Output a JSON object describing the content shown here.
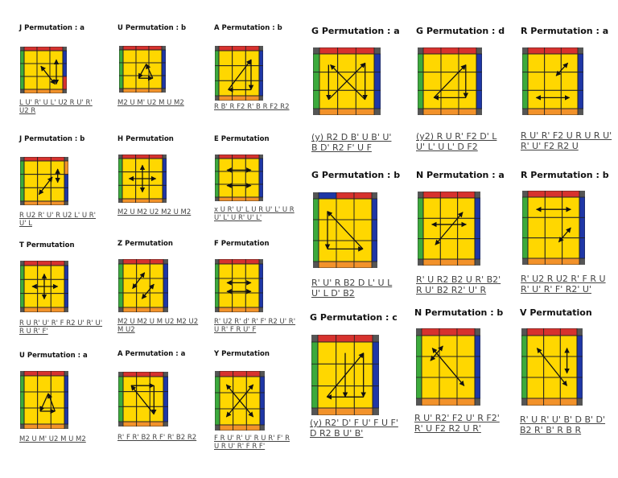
{
  "colors": {
    "face": "#ffd700",
    "grid": "#222222",
    "red": "#d7322e",
    "blue": "#1f37a6",
    "green": "#3caa3c",
    "orange": "#f2922a",
    "arrow": "#111111"
  },
  "cases": [
    {
      "id": "j-a",
      "title": "J Permutation : a",
      "alg": [
        "L U' R' U L' U2 R U' R'",
        "U2 R"
      ]
    },
    {
      "id": "u-b",
      "title": "U Permutation : b",
      "alg": [
        "M2 U M' U2 M U M2"
      ]
    },
    {
      "id": "a-b",
      "title": "A Permutation : b",
      "alg": [
        "R B' R F2 R' B R F2 R2"
      ]
    },
    {
      "id": "j-b",
      "title": "J Permutation : b",
      "alg": [
        "R U2 R' U' R U2 L' U R'",
        "U' L"
      ]
    },
    {
      "id": "h",
      "title": "H Permutation",
      "alg": [
        "M2 U M2 U2 M2 U M2"
      ]
    },
    {
      "id": "e",
      "title": "E Permutation",
      "alg": [
        "x U R' U' L U R U' L' U R",
        "U' L' U R' U' L'"
      ]
    },
    {
      "id": "t",
      "title": "T Permutation",
      "alg": [
        "R U R' U' R' F R2 U' R' U'",
        "R U R' F'"
      ]
    },
    {
      "id": "z",
      "title": "Z Permutation",
      "alg": [
        "M2 U M2 U M U2 M2 U2",
        "M U2"
      ]
    },
    {
      "id": "f",
      "title": "F Permutation",
      "alg": [
        "R' U2 R' d' R' F' R2 U' R'",
        "U R' F R U' F"
      ]
    },
    {
      "id": "u-a",
      "title": "U Permutation : a",
      "alg": [
        "M2 U M' U2 M U M2"
      ]
    },
    {
      "id": "a-a",
      "title": "A Permutation : a",
      "alg": [
        "R' F R' B2 R F' R' B2 R2"
      ]
    },
    {
      "id": "y",
      "title": "Y Permutation",
      "alg": [
        "F R U' R' U' R U R' F' R",
        "U R U' R' F R F'"
      ]
    },
    {
      "id": "g-a",
      "title": "G Permutation : a",
      "alg": [
        "(y) R2 D B' U B' U'",
        "B D' R2 F' U F"
      ]
    },
    {
      "id": "g-d",
      "title": "G Permutation : d",
      "alg": [
        "(y2) R U R' F2 D' L",
        "U' L' U L' D F2"
      ]
    },
    {
      "id": "r-a",
      "title": "R Permutation : a",
      "alg": [
        "R U' R' F2 U R U R U'",
        "R' U' F2 R2 U"
      ]
    },
    {
      "id": "g-b",
      "title": "G Permutation : b",
      "alg": [
        "R' U' R B2 D L' U L",
        "U' L D' B2"
      ]
    },
    {
      "id": "n-a",
      "title": "N Permutation : a",
      "alg": [
        "R' U R2 B2 U R' B2'",
        "R U' B2 R2' U' R"
      ]
    },
    {
      "id": "r-b",
      "title": "R Permutation : b",
      "alg": [
        "R' U2 R U2 R' F R U",
        "R' U' R' F' R2' U'"
      ]
    },
    {
      "id": "g-c",
      "title": "G Permutation : c",
      "alg": [
        "(y) R2' D' F U' F U F'",
        "D R2 B U' B'"
      ]
    },
    {
      "id": "n-b",
      "title": "N Permutation : b",
      "alg": [
        "R U' R2' F2 U' R F2'",
        "R' U F2 R2 U R'"
      ]
    },
    {
      "id": "v",
      "title": "V Permutation",
      "alg": [
        "R' U R' U' B' D B' D'",
        "B2 R' B' R B R"
      ]
    }
  ]
}
